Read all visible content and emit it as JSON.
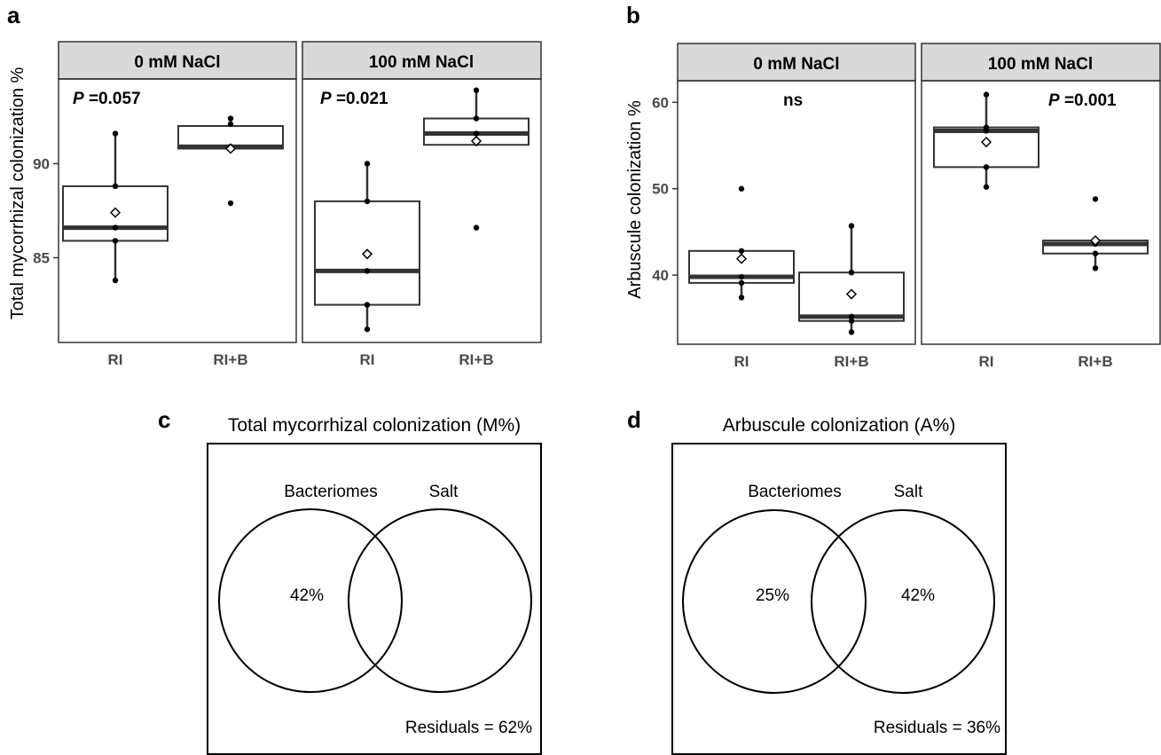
{
  "chart_data": [
    {
      "type": "box",
      "panel": "a",
      "ylabel": "Total mycorrhizal colonization %",
      "ylim": [
        80.5,
        94.5
      ],
      "yticks": [
        85,
        90
      ],
      "categories": [
        "RI",
        "RI+B"
      ],
      "facets": [
        {
          "title": "0 mM NaCl",
          "pvalue": {
            "prefix": "P",
            "text": " =0.057"
          },
          "boxes": [
            {
              "category": "RI",
              "q1": 85.9,
              "median": 86.6,
              "q3": 88.8,
              "whisker_low": 83.8,
              "whisker_high": 91.6,
              "mean": 87.4,
              "points": [
                83.8,
                85.9,
                86.6,
                88.8,
                91.6
              ]
            },
            {
              "category": "RI+B",
              "q1": 90.8,
              "median": 90.9,
              "q3": 92.0,
              "whisker_low": 90.8,
              "whisker_high": 92.4,
              "mean": 90.8,
              "points": [
                87.9,
                90.9,
                92.1,
                92.4
              ]
            }
          ]
        },
        {
          "title": "100 mM NaCl",
          "pvalue": {
            "prefix": "P",
            "text": " =0.021"
          },
          "boxes": [
            {
              "category": "RI",
              "q1": 82.5,
              "median": 84.3,
              "q3": 88.0,
              "whisker_low": 81.2,
              "whisker_high": 90.0,
              "mean": 85.2,
              "points": [
                81.2,
                82.5,
                84.3,
                88.0,
                90.0
              ]
            },
            {
              "category": "RI+B",
              "q1": 91.0,
              "median": 91.6,
              "q3": 92.4,
              "whisker_low": 91.0,
              "whisker_high": 93.9,
              "mean": 91.2,
              "points": [
                86.6,
                91.6,
                92.4,
                93.9
              ]
            }
          ]
        }
      ]
    },
    {
      "type": "box",
      "panel": "b",
      "ylabel": "Arbuscule colonization %",
      "ylim": [
        32,
        62.5
      ],
      "yticks": [
        40,
        50,
        60
      ],
      "categories": [
        "RI",
        "RI+B"
      ],
      "facets": [
        {
          "title": "0 mM NaCl",
          "pvalue": {
            "prefix": "",
            "text": "ns"
          },
          "boxes": [
            {
              "category": "RI",
              "q1": 39.1,
              "median": 39.8,
              "q3": 42.8,
              "whisker_low": 37.4,
              "whisker_high": 42.8,
              "mean": 41.9,
              "points": [
                37.4,
                39.1,
                39.8,
                42.8,
                50.0
              ]
            },
            {
              "category": "RI+B",
              "q1": 34.7,
              "median": 35.2,
              "q3": 40.3,
              "whisker_low": 33.4,
              "whisker_high": 45.7,
              "mean": 37.8,
              "points": [
                33.4,
                34.7,
                35.2,
                40.3,
                45.7
              ]
            }
          ]
        },
        {
          "title": "100 mM NaCl",
          "pvalue": {
            "prefix": "P",
            "text": " =0.001"
          },
          "boxes": [
            {
              "category": "RI",
              "q1": 52.5,
              "median": 56.7,
              "q3": 57.1,
              "whisker_low": 50.2,
              "whisker_high": 60.9,
              "mean": 55.4,
              "points": [
                50.2,
                52.5,
                56.7,
                57.1,
                60.9
              ]
            },
            {
              "category": "RI+B",
              "q1": 42.5,
              "median": 43.6,
              "q3": 44.0,
              "whisker_low": 40.8,
              "whisker_high": 44.0,
              "mean": 44.0,
              "points": [
                40.8,
                42.5,
                43.6,
                44.0,
                48.8
              ]
            }
          ]
        }
      ]
    },
    {
      "type": "venn",
      "panel": "c",
      "title": "Total mycorrhizal colonization (M%)",
      "sets": [
        {
          "name": "Bacteriomes",
          "unique_label": "42%"
        },
        {
          "name": "Salt",
          "unique_label": ""
        }
      ],
      "residuals": "Residuals = 62%"
    },
    {
      "type": "venn",
      "panel": "d",
      "title": "Arbuscule colonization (A%)",
      "sets": [
        {
          "name": "Bacteriomes",
          "unique_label": "25%"
        },
        {
          "name": "Salt",
          "unique_label": "42%"
        }
      ],
      "residuals": "Residuals = 36%"
    }
  ]
}
